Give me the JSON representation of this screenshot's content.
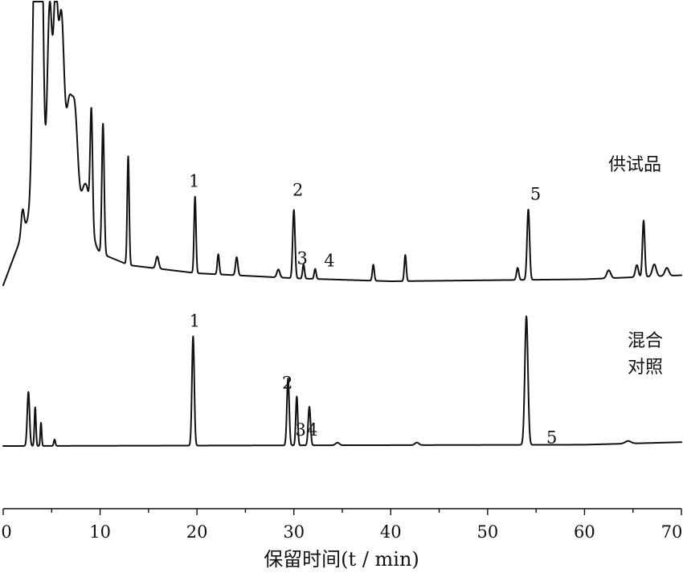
{
  "chart_data": {
    "type": "line",
    "title": "",
    "xlabel": "保留时间(t / min)",
    "ylabel": "",
    "xlim": [
      0,
      70
    ],
    "x_ticks": [
      "0",
      "10",
      "20",
      "30",
      "40",
      "50",
      "60",
      "70"
    ],
    "grid": false,
    "legend": "none",
    "series": [
      {
        "name": "供试品",
        "baseline": 0,
        "scale": 1,
        "peaks": [
          [
            2.0,
            0.12,
            0.15
          ],
          [
            3.3,
            1.4,
            0.25
          ],
          [
            3.9,
            1.6,
            0.22
          ],
          [
            4.8,
            1.0,
            0.25
          ],
          [
            5.4,
            0.95,
            0.22
          ],
          [
            6.0,
            1.0,
            0.3
          ],
          [
            6.8,
            0.55,
            0.3
          ],
          [
            7.4,
            0.55,
            0.3
          ],
          [
            8.5,
            0.3,
            0.5
          ],
          [
            9.1,
            0.55,
            0.12
          ],
          [
            10.3,
            0.65,
            0.12
          ],
          [
            12.9,
            0.54,
            0.1
          ],
          [
            15.9,
            0.06,
            0.15
          ],
          [
            19.8,
            0.38,
            0.1
          ],
          [
            22.2,
            0.1,
            0.1
          ],
          [
            24.1,
            0.09,
            0.12
          ],
          [
            28.4,
            0.04,
            0.15
          ],
          [
            30.0,
            0.34,
            0.12
          ],
          [
            31.0,
            0.07,
            0.1
          ],
          [
            32.2,
            0.05,
            0.1
          ],
          [
            38.2,
            0.08,
            0.1
          ],
          [
            41.5,
            0.13,
            0.1
          ],
          [
            53.1,
            0.06,
            0.12
          ],
          [
            54.2,
            0.35,
            0.13
          ],
          [
            62.5,
            0.04,
            0.2
          ],
          [
            65.4,
            0.06,
            0.15
          ],
          [
            66.1,
            0.28,
            0.12
          ],
          [
            67.2,
            0.06,
            0.2
          ],
          [
            68.5,
            0.04,
            0.2
          ]
        ],
        "drift": [
          [
            0,
            0.0
          ],
          [
            3.5,
            0.45
          ],
          [
            6,
            0.33
          ],
          [
            8,
            0.22
          ],
          [
            10,
            0.16
          ],
          [
            13,
            0.1
          ],
          [
            20,
            0.06
          ],
          [
            30,
            0.035
          ],
          [
            40,
            0.02
          ],
          [
            50,
            0.025
          ],
          [
            60,
            0.03
          ],
          [
            70,
            0.05
          ]
        ],
        "peak_labels": [
          {
            "text": "1",
            "x": 19.8
          },
          {
            "text": "2",
            "x": 30.0
          },
          {
            "text": "3",
            "x": 31.2
          },
          {
            "text": "4",
            "x": 33.0
          },
          {
            "text": "5",
            "x": 54.2
          }
        ],
        "label": "供试品"
      },
      {
        "name": "混合对照",
        "baseline": 0,
        "scale": 1,
        "peaks": [
          [
            2.6,
            0.42,
            0.12
          ],
          [
            3.3,
            0.3,
            0.08
          ],
          [
            3.9,
            0.18,
            0.07
          ],
          [
            5.3,
            0.05,
            0.08
          ],
          [
            19.6,
            0.85,
            0.12
          ],
          [
            29.4,
            0.52,
            0.12
          ],
          [
            30.3,
            0.38,
            0.1
          ],
          [
            31.6,
            0.3,
            0.12
          ],
          [
            34.5,
            0.02,
            0.2
          ],
          [
            42.7,
            0.02,
            0.2
          ],
          [
            54.0,
            1.0,
            0.16
          ],
          [
            64.5,
            0.02,
            0.3
          ]
        ],
        "drift": [
          [
            0,
            0.0
          ],
          [
            30,
            0.005
          ],
          [
            60,
            0.01
          ],
          [
            70,
            0.03
          ]
        ],
        "peak_labels": [
          {
            "text": "1",
            "x": 19.6
          },
          {
            "text": "2",
            "x": 29.5
          },
          {
            "text": "3",
            "x": 30.7
          },
          {
            "text": "4",
            "x": 32.0
          },
          {
            "text": "5",
            "x": 54.8
          }
        ],
        "label_lines": [
          "混合",
          "对照"
        ]
      }
    ]
  }
}
